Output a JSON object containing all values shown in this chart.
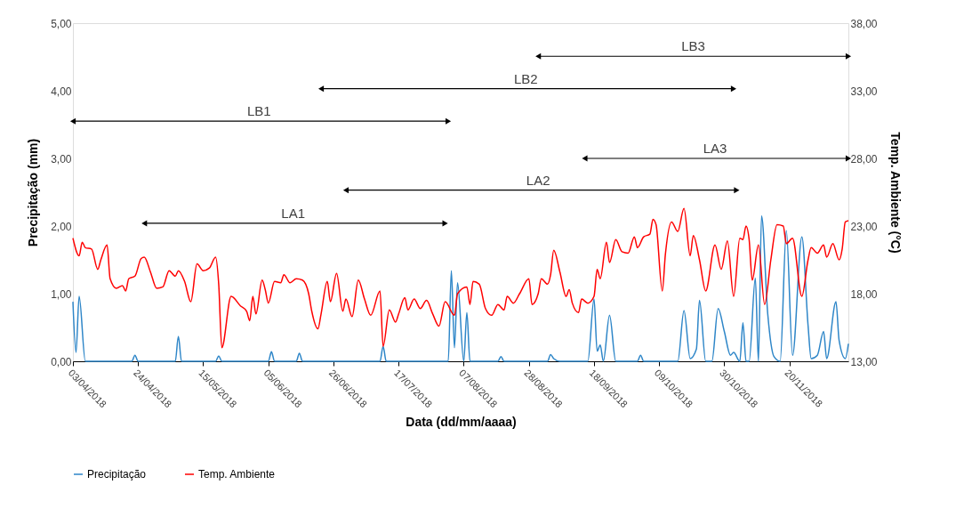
{
  "chart_data": {
    "type": "line",
    "xlabel": "Data (dd/mm/aaaa)",
    "ylabel": "Precipitação (mm)",
    "y2label": "Temp. Ambiente (°C)",
    "xlim": [
      "2018-04-03",
      "2018-12-09"
    ],
    "xticks": [
      {
        "value": "2018-04-03",
        "label": "03/04/2018"
      },
      {
        "value": "2018-04-24",
        "label": "24/04/2018"
      },
      {
        "value": "2018-05-15",
        "label": "15/05/2018"
      },
      {
        "value": "2018-06-05",
        "label": "05/06/2018"
      },
      {
        "value": "2018-06-26",
        "label": "26/06/2018"
      },
      {
        "value": "2018-07-17",
        "label": "17/07/2018"
      },
      {
        "value": "2018-08-07",
        "label": "07/08/2018"
      },
      {
        "value": "2018-08-28",
        "label": "28/08/2018"
      },
      {
        "value": "2018-09-18",
        "label": "18/09/2018"
      },
      {
        "value": "2018-10-09",
        "label": "09/10/2018"
      },
      {
        "value": "2018-10-30",
        "label": "30/10/2018"
      },
      {
        "value": "2018-11-20",
        "label": "20/11/2018"
      }
    ],
    "ylim": [
      0,
      5
    ],
    "yticks": [
      {
        "value": 0,
        "label": "0,00"
      },
      {
        "value": 1,
        "label": "1,00"
      },
      {
        "value": 2,
        "label": "2,00"
      },
      {
        "value": 3,
        "label": "3,00"
      },
      {
        "value": 4,
        "label": "4,00"
      },
      {
        "value": 5,
        "label": "5,00"
      }
    ],
    "y2lim": [
      13,
      38
    ],
    "y2ticks": [
      {
        "value": 13,
        "label": "13,00"
      },
      {
        "value": 18,
        "label": "18,00"
      },
      {
        "value": 23,
        "label": "23,00"
      },
      {
        "value": 28,
        "label": "28,00"
      },
      {
        "value": 33,
        "label": "33,00"
      },
      {
        "value": 38,
        "label": "38,00"
      }
    ],
    "grid": false,
    "legend": "bottom",
    "series": [
      {
        "name": "Precipitação",
        "color": "#2e86c8",
        "x": [
          "2018-04-03",
          "2018-04-04",
          "2018-04-05",
          "2018-04-07",
          "2018-04-22",
          "2018-04-23",
          "2018-04-24",
          "2018-05-06",
          "2018-05-07",
          "2018-05-08",
          "2018-05-19",
          "2018-05-20",
          "2018-05-21",
          "2018-06-05",
          "2018-06-06",
          "2018-06-07",
          "2018-06-14",
          "2018-06-15",
          "2018-06-16",
          "2018-07-11",
          "2018-07-12",
          "2018-07-13",
          "2018-08-02",
          "2018-08-03",
          "2018-08-04",
          "2018-08-05",
          "2018-08-07",
          "2018-08-08",
          "2018-08-09",
          "2018-08-18",
          "2018-08-19",
          "2018-08-20",
          "2018-09-03",
          "2018-09-04",
          "2018-09-05",
          "2018-09-07",
          "2018-09-16",
          "2018-09-18",
          "2018-09-19",
          "2018-09-20",
          "2018-09-21",
          "2018-09-23",
          "2018-09-25",
          "2018-10-02",
          "2018-10-03",
          "2018-10-04",
          "2018-10-15",
          "2018-10-17",
          "2018-10-19",
          "2018-10-21",
          "2018-10-22",
          "2018-10-24",
          "2018-10-26",
          "2018-10-28",
          "2018-10-30",
          "2018-11-01",
          "2018-11-02",
          "2018-11-04",
          "2018-11-05",
          "2018-11-06",
          "2018-11-07",
          "2018-11-09",
          "2018-11-10",
          "2018-11-11",
          "2018-11-13",
          "2018-11-15",
          "2018-11-17",
          "2018-11-19",
          "2018-11-21",
          "2018-11-24",
          "2018-11-26",
          "2018-11-27",
          "2018-11-29",
          "2018-12-01",
          "2018-12-02",
          "2018-12-05",
          "2018-12-06",
          "2018-12-08",
          "2018-12-09"
        ],
        "values": [
          0.88,
          0.13,
          0.96,
          0,
          0,
          0.09,
          0,
          0,
          0.37,
          0,
          0,
          0.08,
          0,
          0,
          0.14,
          0,
          0,
          0.12,
          0,
          0,
          0.22,
          0,
          0,
          1.34,
          0.2,
          1.16,
          0,
          0.72,
          0,
          0,
          0.07,
          0,
          0,
          0.1,
          0.04,
          0,
          0,
          0.92,
          0.15,
          0.24,
          0,
          0.68,
          0,
          0,
          0.09,
          0,
          0,
          0.75,
          0.04,
          0.18,
          0.9,
          0,
          0,
          0.78,
          0.44,
          0.09,
          0.13,
          0,
          0.57,
          0,
          0,
          1.23,
          0,
          2.15,
          0.7,
          0.07,
          0,
          1.93,
          0.09,
          1.84,
          0.53,
          0.04,
          0.09,
          0.44,
          0.04,
          0.88,
          0.31,
          0.04,
          0.26
        ]
      },
      {
        "name": "Temp. Ambiente",
        "color": "#ff0000",
        "axis": "y2",
        "x": [
          "2018-04-03",
          "2018-04-05",
          "2018-04-06",
          "2018-04-07",
          "2018-04-09",
          "2018-04-11",
          "2018-04-12",
          "2018-04-14",
          "2018-04-15",
          "2018-04-17",
          "2018-04-19",
          "2018-04-20",
          "2018-04-21",
          "2018-04-23",
          "2018-04-25",
          "2018-04-26",
          "2018-04-28",
          "2018-04-30",
          "2018-05-02",
          "2018-05-04",
          "2018-05-06",
          "2018-05-07",
          "2018-05-09",
          "2018-05-11",
          "2018-05-13",
          "2018-05-15",
          "2018-05-17",
          "2018-05-19",
          "2018-05-20",
          "2018-05-21",
          "2018-05-24",
          "2018-05-27",
          "2018-05-29",
          "2018-05-30",
          "2018-05-31",
          "2018-06-01",
          "2018-06-03",
          "2018-06-04",
          "2018-06-05",
          "2018-06-07",
          "2018-06-09",
          "2018-06-10",
          "2018-06-12",
          "2018-06-14",
          "2018-06-16",
          "2018-06-18",
          "2018-06-19",
          "2018-06-21",
          "2018-06-22",
          "2018-06-24",
          "2018-06-25",
          "2018-06-27",
          "2018-06-29",
          "2018-06-30",
          "2018-07-02",
          "2018-07-04",
          "2018-07-06",
          "2018-07-08",
          "2018-07-11",
          "2018-07-12",
          "2018-07-14",
          "2018-07-16",
          "2018-07-17",
          "2018-07-19",
          "2018-07-20",
          "2018-07-22",
          "2018-07-24",
          "2018-07-26",
          "2018-07-28",
          "2018-07-30",
          "2018-08-01",
          "2018-08-04",
          "2018-08-05",
          "2018-08-08",
          "2018-08-09",
          "2018-08-10",
          "2018-08-12",
          "2018-08-14",
          "2018-08-16",
          "2018-08-18",
          "2018-08-20",
          "2018-08-21",
          "2018-08-23",
          "2018-08-25",
          "2018-08-28",
          "2018-08-29",
          "2018-08-31",
          "2018-09-01",
          "2018-09-03",
          "2018-09-04",
          "2018-09-05",
          "2018-09-07",
          "2018-09-09",
          "2018-09-10",
          "2018-09-11",
          "2018-09-13",
          "2018-09-14",
          "2018-09-16",
          "2018-09-18",
          "2018-09-19",
          "2018-09-20",
          "2018-09-22",
          "2018-09-23",
          "2018-09-25",
          "2018-09-27",
          "2018-09-29",
          "2018-10-01",
          "2018-10-02",
          "2018-10-04",
          "2018-10-06",
          "2018-10-07",
          "2018-10-08",
          "2018-10-10",
          "2018-10-11",
          "2018-10-13",
          "2018-10-15",
          "2018-10-17",
          "2018-10-19",
          "2018-10-20",
          "2018-10-22",
          "2018-10-24",
          "2018-10-27",
          "2018-10-29",
          "2018-10-31",
          "2018-11-02",
          "2018-11-04",
          "2018-11-05",
          "2018-11-06",
          "2018-11-07",
          "2018-11-08",
          "2018-11-10",
          "2018-11-12",
          "2018-11-14",
          "2018-11-16",
          "2018-11-18",
          "2018-11-19",
          "2018-11-21",
          "2018-11-24",
          "2018-11-26",
          "2018-11-27",
          "2018-11-29",
          "2018-12-01",
          "2018-12-02",
          "2018-12-04",
          "2018-12-06",
          "2018-12-07",
          "2018-12-08",
          "2018-12-09"
        ],
        "values": [
          22.1,
          20.8,
          21.8,
          21.4,
          21.3,
          19.8,
          20.5,
          21.6,
          19.1,
          18.4,
          18.6,
          18.2,
          19.1,
          19.3,
          20.6,
          20.7,
          19.6,
          18.4,
          18.5,
          19.7,
          19.3,
          19.7,
          18.9,
          17.4,
          20.2,
          19.7,
          19.9,
          20.7,
          18.7,
          14.0,
          17.8,
          17.1,
          16.7,
          16.0,
          17.8,
          16.5,
          19.0,
          18.3,
          17.3,
          18.9,
          18.8,
          19.4,
          18.8,
          19.1,
          19.0,
          18.0,
          16.7,
          15.4,
          16.5,
          18.9,
          17.4,
          19.5,
          16.7,
          17.6,
          16.3,
          19.0,
          17.6,
          16.4,
          18.2,
          14.1,
          16.8,
          15.9,
          16.5,
          17.7,
          16.8,
          17.6,
          16.9,
          17.5,
          16.5,
          15.6,
          17.4,
          16.4,
          18.0,
          18.5,
          17.2,
          18.9,
          18.7,
          16.9,
          16.4,
          17.2,
          16.8,
          17.8,
          17.3,
          18.0,
          19.1,
          17.2,
          18.0,
          19.1,
          18.7,
          19.4,
          21.2,
          19.6,
          17.8,
          18.3,
          17.3,
          16.6,
          17.6,
          17.3,
          17.8,
          19.8,
          19.1,
          21.8,
          20.3,
          22.0,
          21.1,
          21.0,
          22.2,
          21.4,
          22.2,
          22.4,
          23.5,
          23.1,
          18.2,
          20.9,
          23.3,
          22.6,
          24.3,
          20.8,
          22.3,
          20.5,
          18.2,
          21.6,
          19.8,
          21.9,
          17.8,
          22.1,
          22.0,
          23.0,
          22.0,
          19.0,
          21.6,
          17.2,
          20.5,
          23.1,
          23.0,
          21.7,
          22.1,
          17.8,
          20.5,
          21.4,
          21.0,
          21.6,
          20.7,
          21.7,
          20.5,
          21.3,
          23.3,
          23.4
        ]
      },
      {
        "type": "line",
        "color": "#000000",
        "marker": "triangle",
        "x": [
          "2018-08-31",
          "2018-12-09"
        ],
        "values": [
          4.51,
          4.51
        ]
      },
      {
        "type": "line",
        "color": "#000000",
        "marker": "triangle",
        "x": [
          "2018-06-22",
          "2018-11-02"
        ],
        "values": [
          4.03,
          4.03
        ]
      },
      {
        "type": "line",
        "color": "#000000",
        "marker": "triangle",
        "x": [
          "2018-04-03",
          "2018-08-02"
        ],
        "values": [
          3.55,
          3.55
        ]
      },
      {
        "type": "line",
        "color": "#000000",
        "marker": "triangle",
        "x": [
          "2018-09-15",
          "2018-12-09"
        ],
        "values": [
          3.0,
          3.0
        ]
      },
      {
        "type": "line",
        "color": "#000000",
        "marker": "triangle",
        "x": [
          "2018-06-30",
          "2018-11-03"
        ],
        "values": [
          2.53,
          2.53
        ]
      },
      {
        "type": "line",
        "color": "#000000",
        "marker": "triangle",
        "x": [
          "2018-04-26",
          "2018-08-01"
        ],
        "values": [
          2.04,
          2.04
        ]
      }
    ],
    "annotations": [
      {
        "text": "LB3",
        "x": "2018-10-20",
        "y": 4.51
      },
      {
        "text": "LB2",
        "x": "2018-08-27",
        "y": 4.03
      },
      {
        "text": "LB1",
        "x": "2018-06-02",
        "y": 3.55
      },
      {
        "text": "LA3",
        "x": "2018-10-27",
        "y": 3.0
      },
      {
        "text": "LA2",
        "x": "2018-08-31",
        "y": 2.53
      },
      {
        "text": "LA1",
        "x": "2018-06-13",
        "y": 2.04
      }
    ]
  }
}
